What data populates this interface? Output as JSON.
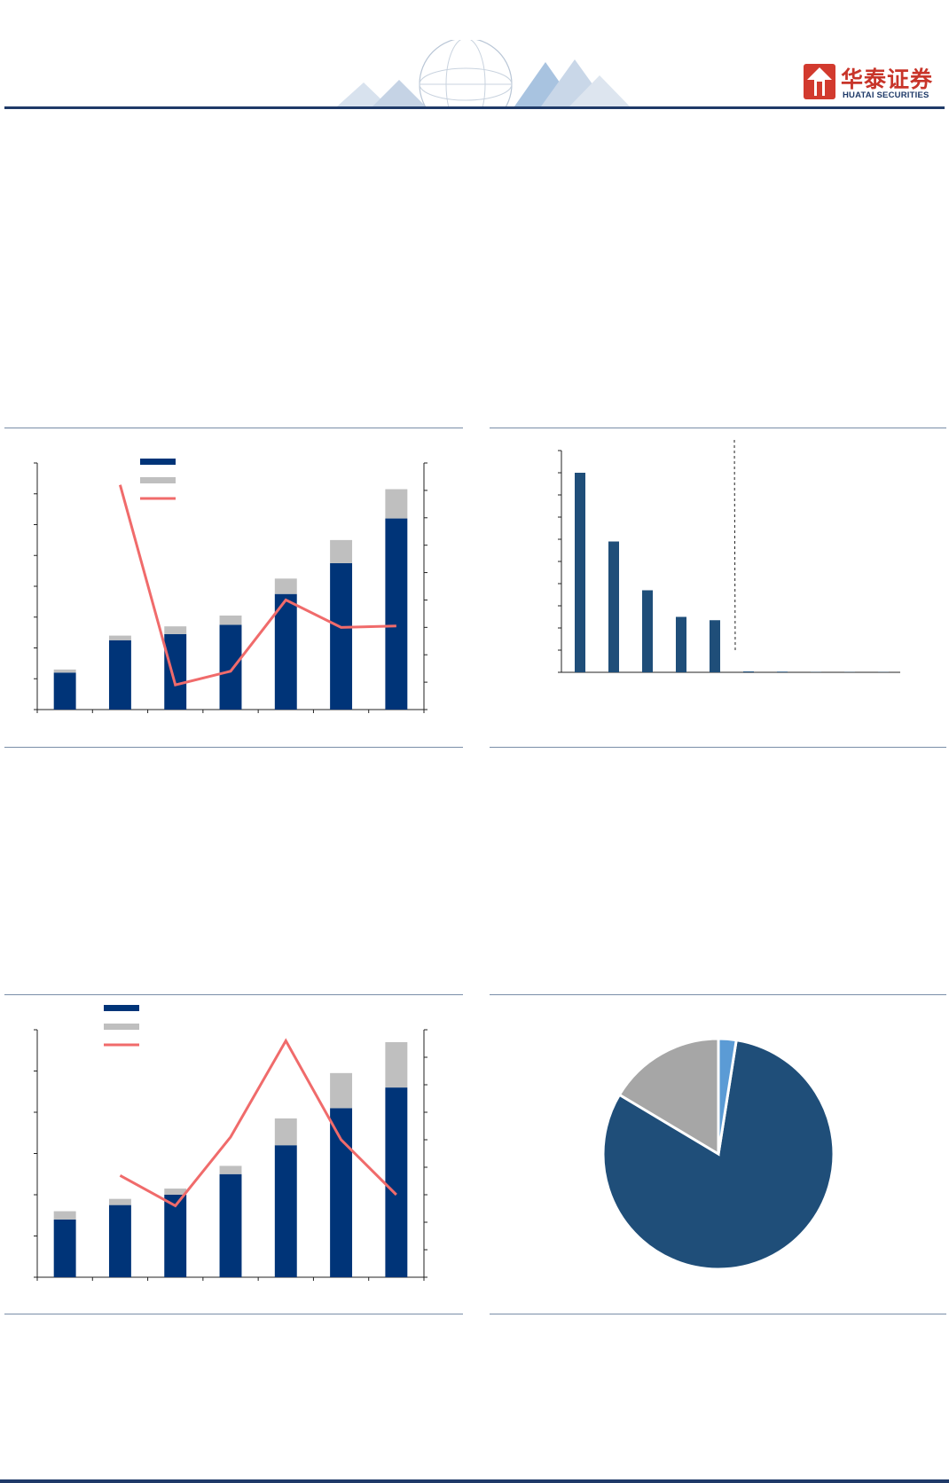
{
  "header": {
    "brand_cn": "华泰证券",
    "brand_en": "HUATAI SECURITIES",
    "colors": {
      "brand_red": "#d23a2e",
      "brand_navy": "#1f3a68"
    }
  },
  "colors": {
    "bar_primary": "#003478",
    "bar_secondary": "#bfbfbf",
    "line": "#f06b6b",
    "bar_single": "#1f4e79",
    "pie_main": "#1f4e79",
    "pie_grey": "#a6a6a6",
    "pie_light": "#5b9bd5"
  },
  "chart_data": [
    {
      "type": "bar",
      "stacked": true,
      "dual_axis": true,
      "categories": [
        "",
        "",
        "",
        "",
        "",
        "",
        ""
      ],
      "series": [
        {
          "kind": "bar",
          "values": [
            12,
            22.5,
            24.5,
            27.5,
            37.5,
            47.5,
            62
          ]
        },
        {
          "kind": "bar",
          "values": [
            1,
            1.5,
            2.5,
            3,
            5,
            7.5,
            9.5
          ]
        },
        {
          "kind": "line",
          "axis": "right",
          "values": [
            null,
            82,
            9,
            14,
            40,
            30,
            30.5
          ]
        }
      ],
      "ylim": [
        0,
        80
      ],
      "y2lim": [
        0,
        90
      ],
      "legend": "top-center"
    },
    {
      "type": "bar",
      "categories": [
        "",
        "",
        "",
        "",
        "",
        "",
        "",
        "",
        "",
        ""
      ],
      "values": [
        90,
        59,
        37,
        25,
        23.5,
        0.4,
        0.3,
        0.1,
        0.1,
        0.1
      ],
      "ylim": [
        0,
        100
      ],
      "reference_line": "dashed-vertical"
    },
    {
      "type": "bar",
      "stacked": true,
      "dual_axis": true,
      "categories": [
        "",
        "",
        "",
        "",
        "",
        "",
        ""
      ],
      "series": [
        {
          "kind": "bar",
          "values": [
            14,
            17.5,
            20,
            25,
            32,
            41,
            46
          ]
        },
        {
          "kind": "bar",
          "values": [
            2,
            1.5,
            1.5,
            2,
            6.5,
            8.5,
            11
          ]
        },
        {
          "kind": "line",
          "axis": "right",
          "values": [
            null,
            37,
            26,
            51,
            86,
            50,
            30
          ]
        }
      ],
      "ylim": [
        0,
        60
      ],
      "y2lim": [
        0,
        90
      ],
      "legend": "top-left"
    },
    {
      "type": "pie",
      "values": [
        81.5,
        16.5,
        2.5
      ]
    }
  ]
}
